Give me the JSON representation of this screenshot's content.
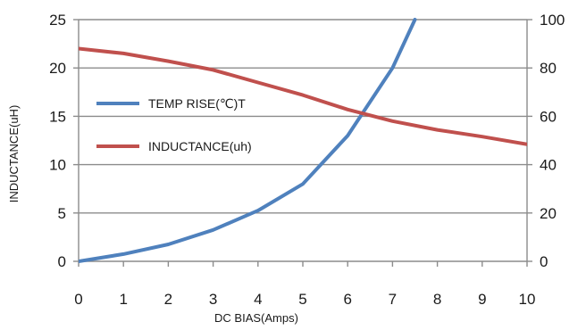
{
  "chart_data": {
    "type": "line",
    "title": "",
    "xlabel": "DC  BIAS(Amps)",
    "ylabel": "INDUCTANCE(uH)",
    "y2label": "",
    "x_ticks": [
      0,
      1,
      2,
      3,
      4,
      5,
      6,
      7,
      8,
      9,
      10
    ],
    "y_ticks": [
      0,
      5,
      10,
      15,
      20,
      25
    ],
    "y2_ticks": [
      0,
      20,
      40,
      60,
      80,
      100
    ],
    "xlim": [
      0,
      10
    ],
    "ylim": [
      0,
      25
    ],
    "y2lim": [
      0,
      100
    ],
    "grid": "horizontal",
    "legend_position": "inside-left",
    "series": [
      {
        "name": "TEMP RISE(℃)T",
        "color": "#4f81bd",
        "axis": "right",
        "x": [
          0,
          1,
          2,
          3,
          4,
          5,
          6,
          7,
          7.5
        ],
        "values": [
          0,
          3,
          7,
          13,
          21,
          32,
          52,
          80,
          100
        ]
      },
      {
        "name": "INDUCTANCE(uh)",
        "color": "#c0504d",
        "axis": "left",
        "x": [
          0,
          1,
          2,
          3,
          4,
          5,
          6,
          7,
          8,
          9,
          10
        ],
        "values": [
          22,
          21.5,
          20.7,
          19.8,
          18.5,
          17.2,
          15.7,
          14.5,
          13.6,
          12.9,
          12.1
        ]
      }
    ]
  }
}
